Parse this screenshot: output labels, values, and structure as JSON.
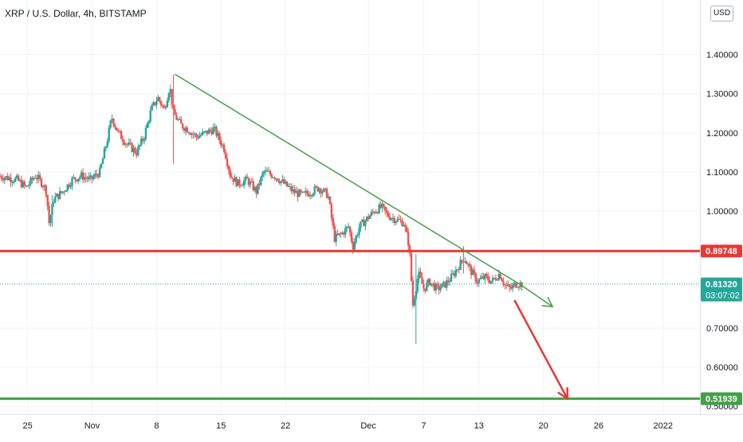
{
  "header": {
    "title": "XRP / U.S. Dollar, 4h, BITSTAMP",
    "currency": "USD"
  },
  "chart_data": {
    "type": "candlestick",
    "ylim": [
      0.48,
      1.54
    ],
    "y_ticks": [
      "1.40000",
      "1.30000",
      "1.20000",
      "1.10000",
      "1.00000",
      "0.70000",
      "0.60000",
      "0.50000"
    ],
    "y_tick_values": [
      1.4,
      1.3,
      1.2,
      1.1,
      1.0,
      0.7,
      0.6,
      0.5
    ],
    "x_labels": [
      "25",
      "Nov",
      "8",
      "15",
      "22",
      "Dec",
      "7",
      "13",
      "20",
      "26",
      "2022"
    ],
    "x_label_days": [
      -6,
      1,
      8,
      15,
      22,
      31,
      37,
      43,
      50,
      56,
      63
    ],
    "xlim_days": [
      -9,
      67
    ],
    "price_path": [
      [
        -9.0,
        1.09
      ],
      [
        -7.0,
        1.08
      ],
      [
        -6.0,
        1.06
      ],
      [
        -5.0,
        1.09
      ],
      [
        -4.2,
        1.07
      ],
      [
        -3.8,
        1.05
      ],
      [
        -3.5,
        0.97
      ],
      [
        -3.0,
        1.03
      ],
      [
        -2.0,
        1.05
      ],
      [
        -1.0,
        1.08
      ],
      [
        0.0,
        1.09
      ],
      [
        1.0,
        1.08
      ],
      [
        2.0,
        1.1
      ],
      [
        2.8,
        1.18
      ],
      [
        3.3,
        1.24
      ],
      [
        4.0,
        1.2
      ],
      [
        5.0,
        1.17
      ],
      [
        6.0,
        1.15
      ],
      [
        6.8,
        1.19
      ],
      [
        7.6,
        1.26
      ],
      [
        8.3,
        1.29
      ],
      [
        9.0,
        1.26
      ],
      [
        9.6,
        1.32
      ],
      [
        10.0,
        1.25
      ],
      [
        10.8,
        1.22
      ],
      [
        11.5,
        1.21
      ],
      [
        12.5,
        1.19
      ],
      [
        13.5,
        1.2
      ],
      [
        14.4,
        1.21
      ],
      [
        15.5,
        1.16
      ],
      [
        16.2,
        1.09
      ],
      [
        17.0,
        1.07
      ],
      [
        18.0,
        1.08
      ],
      [
        19.0,
        1.05
      ],
      [
        19.8,
        1.1
      ],
      [
        21.0,
        1.09
      ],
      [
        22.0,
        1.07
      ],
      [
        23.0,
        1.05
      ],
      [
        24.0,
        1.04
      ],
      [
        25.0,
        1.05
      ],
      [
        25.8,
        1.06
      ],
      [
        26.8,
        1.04
      ],
      [
        27.5,
        0.93
      ],
      [
        28.2,
        0.94
      ],
      [
        29.0,
        0.96
      ],
      [
        29.5,
        0.91
      ],
      [
        30.2,
        0.96
      ],
      [
        31.0,
        0.98
      ],
      [
        31.8,
        1.0
      ],
      [
        32.6,
        1.01
      ],
      [
        33.2,
        0.99
      ],
      [
        34.0,
        0.98
      ],
      [
        35.0,
        0.97
      ],
      [
        35.6,
        0.91
      ],
      [
        36.0,
        0.76
      ],
      [
        36.6,
        0.84
      ],
      [
        37.2,
        0.8
      ],
      [
        37.8,
        0.82
      ],
      [
        38.6,
        0.8
      ],
      [
        39.4,
        0.81
      ],
      [
        40.2,
        0.83
      ],
      [
        41.0,
        0.86
      ],
      [
        41.6,
        0.88
      ],
      [
        42.2,
        0.85
      ],
      [
        43.0,
        0.82
      ],
      [
        43.8,
        0.83
      ],
      [
        44.6,
        0.82
      ],
      [
        45.4,
        0.84
      ],
      [
        46.0,
        0.81
      ],
      [
        46.6,
        0.8
      ],
      [
        47.2,
        0.815
      ],
      [
        47.8,
        0.8132
      ]
    ],
    "spikes": [
      {
        "day": 9.8,
        "high": 1.35,
        "low": 1.12
      },
      {
        "day": -3.4,
        "high": 1.04,
        "low": 0.96
      },
      {
        "day": 36.2,
        "high": 0.89,
        "low": 0.66
      },
      {
        "day": 41.4,
        "high": 0.91,
        "low": 0.84
      }
    ],
    "series_colors": {
      "up": "#26a69a",
      "down": "#ef5350"
    },
    "horizontal_levels": [
      {
        "value": 0.89748,
        "label": "0.89748",
        "color": "#e53935"
      },
      {
        "value": 0.51939,
        "label": "0.51939",
        "color": "#43a047"
      }
    ],
    "current_price": {
      "value": 0.8132,
      "label": "0.81320",
      "countdown": "03:07:02",
      "color": "#26a69a"
    },
    "trendline": {
      "start": [
        10.0,
        1.35
      ],
      "end": [
        47.6,
        0.81
      ],
      "color": "#43a047"
    },
    "projection_arrow_green": {
      "start": [
        47.6,
        0.81
      ],
      "end": [
        51.0,
        0.755
      ],
      "color": "#43a047"
    },
    "projection_arrow_red": {
      "start": [
        46.9,
        0.77
      ],
      "end": [
        52.6,
        0.52
      ],
      "color": "#e53935"
    },
    "grid": true
  }
}
